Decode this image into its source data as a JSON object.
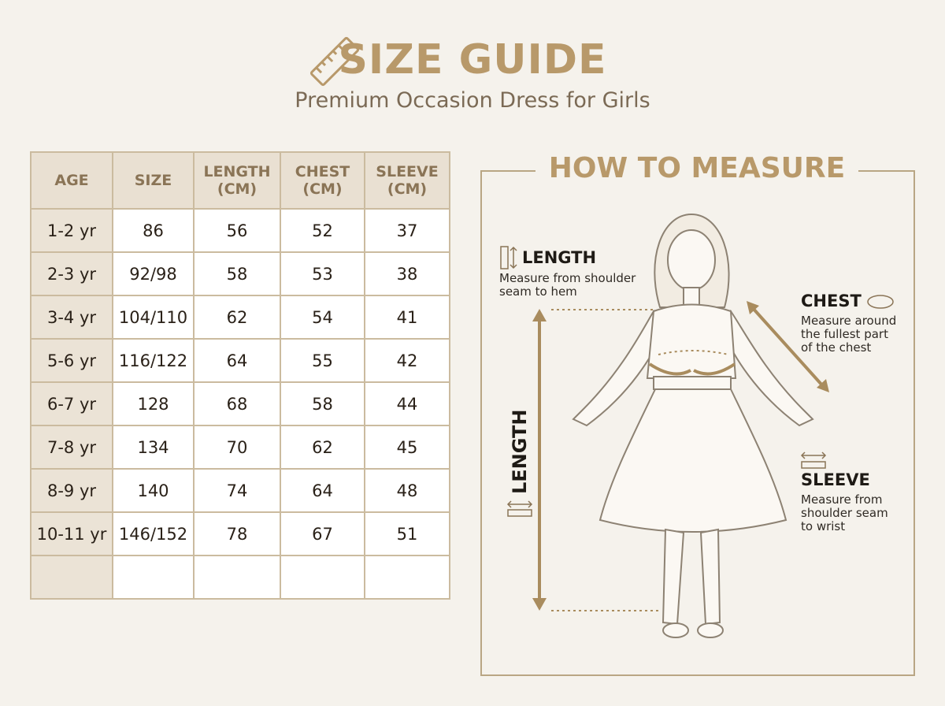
{
  "header": {
    "title": "SIZE GUIDE",
    "subtitle": "Premium Occasion Dress for Girls"
  },
  "table": {
    "columns": [
      "AGE",
      "SIZE",
      "LENGTH (CM)",
      "CHEST (CM)",
      "SLEEVE (CM)"
    ],
    "rows": [
      [
        "1-2 yr",
        86,
        56,
        52,
        37
      ],
      [
        "2-3 yr",
        "92/98",
        58,
        53,
        38
      ],
      [
        "3-4 yr",
        "104/110",
        62,
        54,
        41
      ],
      [
        "5-6 yr",
        "116/122",
        64,
        55,
        42
      ],
      [
        "6-7 yr",
        128,
        68,
        58,
        44
      ],
      [
        "7-8 yr",
        134,
        70,
        62,
        45
      ],
      [
        "8-9 yr",
        140,
        74,
        64,
        48
      ],
      [
        "10-11 yr",
        "146/152",
        78,
        67,
        51
      ]
    ]
  },
  "measure": {
    "title": "HOW TO MEASURE",
    "length": {
      "label": "LENGTH",
      "description": "Measure from shoulder seam to hem"
    },
    "chest": {
      "label": "CHEST",
      "description": "Measure around the fullest part of the chest"
    },
    "sleeve": {
      "label": "SLEEVE",
      "description": "Measure from shoulder seam to wrist"
    },
    "vertical_label": "LENGTH"
  }
}
